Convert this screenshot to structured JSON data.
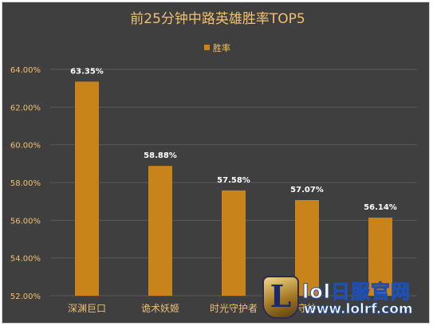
{
  "chart_data": {
    "type": "bar",
    "title": "前25分钟中路英雄胜率TOP5",
    "legend": {
      "label": "胜率",
      "position": "top"
    },
    "categories": [
      "深渊巨口",
      "诡术妖姬",
      "时光守护者",
      "守护",
      ""
    ],
    "series": [
      {
        "name": "胜率",
        "values": [
          63.35,
          58.88,
          57.58,
          57.07,
          56.14
        ]
      }
    ],
    "value_labels": [
      "63.35%",
      "58.88%",
      "57.58%",
      "57.07%",
      "56.14%"
    ],
    "y_ticks": [
      "52.00%",
      "54.00%",
      "56.00%",
      "58.00%",
      "60.00%",
      "62.00%",
      "64.00%"
    ],
    "ylim": [
      52,
      64
    ],
    "grid": true,
    "colors": {
      "bar": "#c8841a",
      "background": "#3f3f3f",
      "grid": "#5a5a5a",
      "title": "#f0c070",
      "tick": "#f0c070",
      "label": "#ffffff"
    }
  },
  "watermark": {
    "badge": "L",
    "title": "lol日服官网",
    "url": "www.lolrf.com"
  }
}
